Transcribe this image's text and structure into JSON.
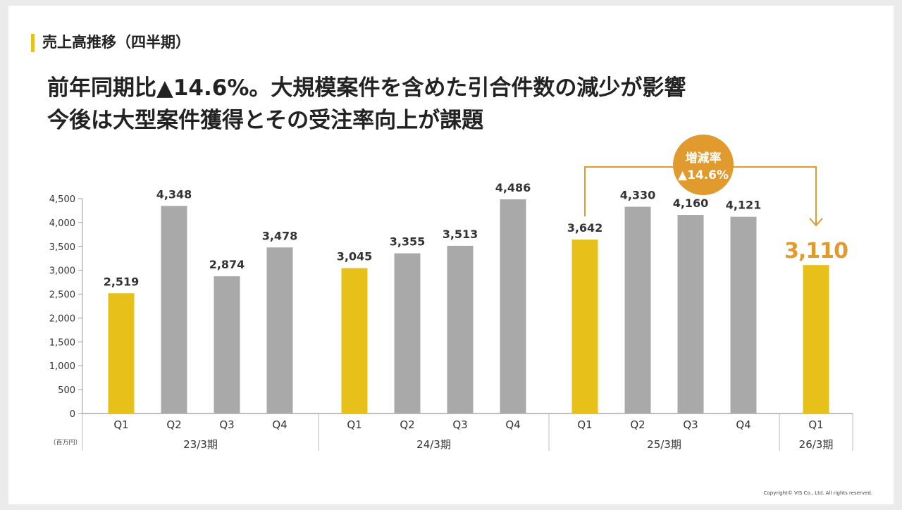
{
  "section_title": "売上高推移（四半期）",
  "headline": {
    "line1": "前年同期比▲14.6%。大規模案件を含めた引合件数の減少が影響",
    "line2": "今後は大型案件獲得とその受注率向上が課題"
  },
  "copyright": "Copyright© VIS Co., Ltd. All rights reserved.",
  "colors": {
    "highlight": "#e8c01a",
    "bar_default": "#a9a9a9",
    "accent": "#e09a2e",
    "text": "#222222"
  },
  "chart_data": {
    "type": "bar",
    "unit_label": "（百万円）",
    "ylim": [
      0,
      4500
    ],
    "yticks": [
      0,
      500,
      1000,
      1500,
      2000,
      2500,
      3000,
      3500,
      4000,
      4500
    ],
    "ytick_labels": [
      "0",
      "500",
      "1,000",
      "1,500",
      "2,000",
      "2,500",
      "3,000",
      "3,500",
      "4,000",
      "4,500"
    ],
    "groups": [
      {
        "label": "23/3期",
        "bars": [
          {
            "x": "Q1",
            "value": 2519,
            "label": "2,519",
            "highlight": true
          },
          {
            "x": "Q2",
            "value": 4348,
            "label": "4,348",
            "highlight": false
          },
          {
            "x": "Q3",
            "value": 2874,
            "label": "2,874",
            "highlight": false
          },
          {
            "x": "Q4",
            "value": 3478,
            "label": "3,478",
            "highlight": false
          }
        ]
      },
      {
        "label": "24/3期",
        "bars": [
          {
            "x": "Q1",
            "value": 3045,
            "label": "3,045",
            "highlight": true
          },
          {
            "x": "Q2",
            "value": 3355,
            "label": "3,355",
            "highlight": false
          },
          {
            "x": "Q3",
            "value": 3513,
            "label": "3,513",
            "highlight": false
          },
          {
            "x": "Q4",
            "value": 4486,
            "label": "4,486",
            "highlight": false
          }
        ]
      },
      {
        "label": "25/3期",
        "bars": [
          {
            "x": "Q1",
            "value": 3642,
            "label": "3,642",
            "highlight": true
          },
          {
            "x": "Q2",
            "value": 4330,
            "label": "4,330",
            "highlight": false
          },
          {
            "x": "Q3",
            "value": 4160,
            "label": "4,160",
            "highlight": false
          },
          {
            "x": "Q4",
            "value": 4121,
            "label": "4,121",
            "highlight": false
          }
        ]
      },
      {
        "label": "26/3期",
        "bars": [
          {
            "x": "Q1",
            "value": 3110,
            "label": "3,110",
            "highlight": true,
            "emphasis": true
          }
        ]
      }
    ],
    "annotation": {
      "line1": "増減率",
      "line2": "▲14.6%",
      "from": {
        "group": 2,
        "bar": 0
      },
      "to": {
        "group": 3,
        "bar": 0
      }
    },
    "grid": false,
    "legend": "none"
  }
}
